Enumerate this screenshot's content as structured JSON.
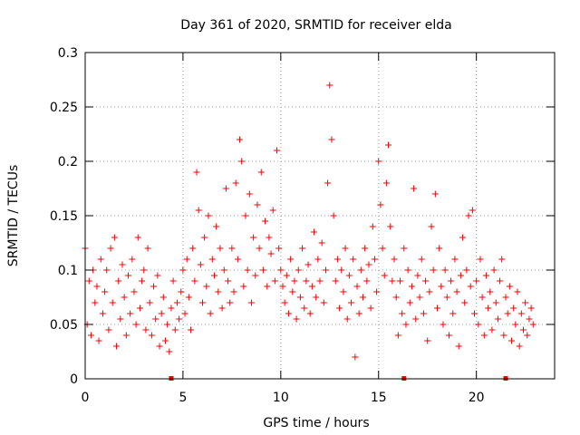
{
  "chart_data": {
    "type": "scatter",
    "title": "Day 361 of 2020, SRMTID for receiver elda",
    "xlabel": "GPS time / hours",
    "ylabel": "SRMTID / TECUs",
    "xlim": [
      0,
      24
    ],
    "ylim": [
      0,
      0.3
    ],
    "x_ticks": [
      0,
      5,
      10,
      15,
      20
    ],
    "x_tick_labels": [
      "0",
      "5",
      "10",
      "15",
      "20"
    ],
    "y_ticks": [
      0,
      0.05,
      0.1,
      0.15,
      0.2,
      0.25,
      0.3
    ],
    "y_tick_labels": [
      "0",
      "0.05",
      "0.1",
      "0.15",
      "0.2",
      "0.25",
      "0.3"
    ],
    "grid": true,
    "marker": "+",
    "series": [
      {
        "name": "SRMTID",
        "color": "#ff0000",
        "points": [
          [
            0.0,
            0.12
          ],
          [
            0.1,
            0.05
          ],
          [
            0.2,
            0.09
          ],
          [
            0.3,
            0.04
          ],
          [
            0.4,
            0.1
          ],
          [
            0.5,
            0.07
          ],
          [
            0.6,
            0.085
          ],
          [
            0.7,
            0.035
          ],
          [
            0.8,
            0.11
          ],
          [
            0.9,
            0.06
          ],
          [
            1.0,
            0.08
          ],
          [
            1.1,
            0.1
          ],
          [
            1.2,
            0.045
          ],
          [
            1.3,
            0.12
          ],
          [
            1.4,
            0.07
          ],
          [
            1.5,
            0.13
          ],
          [
            1.6,
            0.03
          ],
          [
            1.7,
            0.09
          ],
          [
            1.8,
            0.055
          ],
          [
            1.9,
            0.105
          ],
          [
            2.0,
            0.075
          ],
          [
            2.1,
            0.04
          ],
          [
            2.2,
            0.095
          ],
          [
            2.3,
            0.06
          ],
          [
            2.4,
            0.11
          ],
          [
            2.5,
            0.08
          ],
          [
            2.6,
            0.05
          ],
          [
            2.7,
            0.13
          ],
          [
            2.8,
            0.065
          ],
          [
            2.9,
            0.09
          ],
          [
            3.0,
            0.1
          ],
          [
            3.1,
            0.045
          ],
          [
            3.2,
            0.12
          ],
          [
            3.3,
            0.07
          ],
          [
            3.4,
            0.04
          ],
          [
            3.5,
            0.085
          ],
          [
            3.6,
            0.055
          ],
          [
            3.7,
            0.095
          ],
          [
            3.8,
            0.03
          ],
          [
            3.9,
            0.06
          ],
          [
            4.0,
            0.075
          ],
          [
            4.1,
            0.035
          ],
          [
            4.2,
            0.05
          ],
          [
            4.3,
            0.025
          ],
          [
            4.4,
            0.065
          ],
          [
            4.5,
            0.09
          ],
          [
            4.6,
            0.045
          ],
          [
            4.7,
            0.07
          ],
          [
            4.8,
            0.055
          ],
          [
            4.9,
            0.08
          ],
          [
            5.0,
            0.1
          ],
          [
            5.1,
            0.06
          ],
          [
            5.2,
            0.11
          ],
          [
            5.3,
            0.075
          ],
          [
            5.4,
            0.045
          ],
          [
            5.5,
            0.12
          ],
          [
            5.6,
            0.09
          ],
          [
            5.7,
            0.19
          ],
          [
            5.8,
            0.155
          ],
          [
            5.9,
            0.105
          ],
          [
            6.0,
            0.07
          ],
          [
            6.1,
            0.13
          ],
          [
            6.2,
            0.085
          ],
          [
            6.3,
            0.15
          ],
          [
            6.4,
            0.06
          ],
          [
            6.5,
            0.11
          ],
          [
            6.6,
            0.095
          ],
          [
            6.7,
            0.14
          ],
          [
            6.8,
            0.08
          ],
          [
            6.9,
            0.12
          ],
          [
            7.0,
            0.065
          ],
          [
            7.1,
            0.1
          ],
          [
            7.2,
            0.175
          ],
          [
            7.3,
            0.09
          ],
          [
            7.4,
            0.07
          ],
          [
            7.5,
            0.12
          ],
          [
            7.6,
            0.08
          ],
          [
            7.7,
            0.18
          ],
          [
            7.8,
            0.11
          ],
          [
            7.9,
            0.22
          ],
          [
            8.0,
            0.2
          ],
          [
            8.1,
            0.085
          ],
          [
            8.2,
            0.15
          ],
          [
            8.3,
            0.1
          ],
          [
            8.4,
            0.17
          ],
          [
            8.5,
            0.07
          ],
          [
            8.6,
            0.13
          ],
          [
            8.7,
            0.095
          ],
          [
            8.8,
            0.16
          ],
          [
            8.9,
            0.12
          ],
          [
            9.0,
            0.19
          ],
          [
            9.1,
            0.1
          ],
          [
            9.2,
            0.145
          ],
          [
            9.3,
            0.085
          ],
          [
            9.4,
            0.13
          ],
          [
            9.5,
            0.115
          ],
          [
            9.6,
            0.155
          ],
          [
            9.7,
            0.09
          ],
          [
            9.8,
            0.21
          ],
          [
            9.9,
            0.12
          ],
          [
            10.0,
            0.1
          ],
          [
            10.1,
            0.085
          ],
          [
            10.2,
            0.07
          ],
          [
            10.3,
            0.095
          ],
          [
            10.4,
            0.06
          ],
          [
            10.5,
            0.11
          ],
          [
            10.6,
            0.08
          ],
          [
            10.7,
            0.09
          ],
          [
            10.8,
            0.055
          ],
          [
            10.9,
            0.1
          ],
          [
            11.0,
            0.075
          ],
          [
            11.1,
            0.12
          ],
          [
            11.2,
            0.065
          ],
          [
            11.3,
            0.09
          ],
          [
            11.4,
            0.105
          ],
          [
            11.5,
            0.06
          ],
          [
            11.6,
            0.085
          ],
          [
            11.7,
            0.135
          ],
          [
            11.8,
            0.075
          ],
          [
            11.9,
            0.11
          ],
          [
            12.0,
            0.09
          ],
          [
            12.1,
            0.125
          ],
          [
            12.2,
            0.07
          ],
          [
            12.3,
            0.1
          ],
          [
            12.4,
            0.18
          ],
          [
            12.5,
            0.27
          ],
          [
            12.6,
            0.22
          ],
          [
            12.7,
            0.15
          ],
          [
            12.8,
            0.09
          ],
          [
            12.9,
            0.11
          ],
          [
            13.0,
            0.065
          ],
          [
            13.1,
            0.1
          ],
          [
            13.2,
            0.08
          ],
          [
            13.3,
            0.12
          ],
          [
            13.4,
            0.055
          ],
          [
            13.5,
            0.095
          ],
          [
            13.6,
            0.07
          ],
          [
            13.7,
            0.11
          ],
          [
            13.8,
            0.02
          ],
          [
            13.9,
            0.085
          ],
          [
            14.0,
            0.06
          ],
          [
            14.1,
            0.1
          ],
          [
            14.2,
            0.075
          ],
          [
            14.3,
            0.12
          ],
          [
            14.4,
            0.09
          ],
          [
            14.5,
            0.105
          ],
          [
            14.6,
            0.065
          ],
          [
            14.7,
            0.14
          ],
          [
            14.8,
            0.11
          ],
          [
            14.9,
            0.08
          ],
          [
            15.0,
            0.2
          ],
          [
            15.1,
            0.16
          ],
          [
            15.2,
            0.12
          ],
          [
            15.3,
            0.095
          ],
          [
            15.4,
            0.18
          ],
          [
            15.5,
            0.215
          ],
          [
            15.6,
            0.14
          ],
          [
            15.7,
            0.09
          ],
          [
            15.8,
            0.11
          ],
          [
            15.9,
            0.075
          ],
          [
            16.0,
            0.04
          ],
          [
            16.1,
            0.09
          ],
          [
            16.2,
            0.06
          ],
          [
            16.3,
            0.12
          ],
          [
            16.4,
            0.05
          ],
          [
            16.5,
            0.1
          ],
          [
            16.6,
            0.07
          ],
          [
            16.7,
            0.085
          ],
          [
            16.8,
            0.175
          ],
          [
            16.9,
            0.055
          ],
          [
            17.0,
            0.095
          ],
          [
            17.1,
            0.075
          ],
          [
            17.2,
            0.11
          ],
          [
            17.3,
            0.06
          ],
          [
            17.4,
            0.09
          ],
          [
            17.5,
            0.035
          ],
          [
            17.6,
            0.08
          ],
          [
            17.7,
            0.14
          ],
          [
            17.8,
            0.1
          ],
          [
            17.9,
            0.17
          ],
          [
            18.0,
            0.065
          ],
          [
            18.1,
            0.12
          ],
          [
            18.2,
            0.085
          ],
          [
            18.3,
            0.05
          ],
          [
            18.4,
            0.1
          ],
          [
            18.5,
            0.075
          ],
          [
            18.6,
            0.04
          ],
          [
            18.7,
            0.09
          ],
          [
            18.8,
            0.06
          ],
          [
            18.9,
            0.11
          ],
          [
            19.0,
            0.08
          ],
          [
            19.1,
            0.03
          ],
          [
            19.2,
            0.095
          ],
          [
            19.3,
            0.13
          ],
          [
            19.4,
            0.07
          ],
          [
            19.5,
            0.1
          ],
          [
            19.6,
            0.15
          ],
          [
            19.7,
            0.085
          ],
          [
            19.8,
            0.155
          ],
          [
            19.9,
            0.06
          ],
          [
            20.0,
            0.09
          ],
          [
            20.1,
            0.05
          ],
          [
            20.2,
            0.11
          ],
          [
            20.3,
            0.075
          ],
          [
            20.4,
            0.04
          ],
          [
            20.5,
            0.095
          ],
          [
            20.6,
            0.065
          ],
          [
            20.7,
            0.08
          ],
          [
            20.8,
            0.045
          ],
          [
            20.9,
            0.1
          ],
          [
            21.0,
            0.07
          ],
          [
            21.1,
            0.055
          ],
          [
            21.2,
            0.09
          ],
          [
            21.3,
            0.11
          ],
          [
            21.4,
            0.04
          ],
          [
            21.5,
            0.075
          ],
          [
            21.6,
            0.06
          ],
          [
            21.7,
            0.085
          ],
          [
            21.8,
            0.035
          ],
          [
            21.9,
            0.065
          ],
          [
            22.0,
            0.05
          ],
          [
            22.1,
            0.08
          ],
          [
            22.2,
            0.03
          ],
          [
            22.3,
            0.06
          ],
          [
            22.4,
            0.045
          ],
          [
            22.5,
            0.07
          ],
          [
            22.6,
            0.04
          ],
          [
            22.7,
            0.055
          ],
          [
            22.8,
            0.065
          ],
          [
            22.9,
            0.05
          ]
        ]
      }
    ],
    "marker_ticks_on_x_axis": [
      4.4,
      16.3,
      21.5
    ]
  }
}
